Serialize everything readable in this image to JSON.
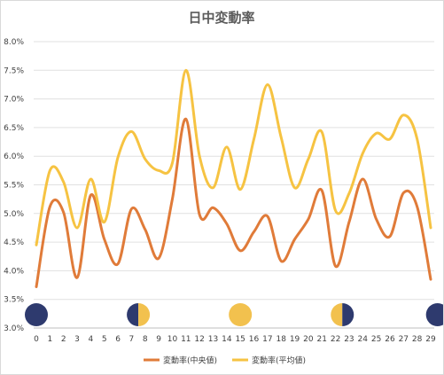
{
  "chart_data": {
    "type": "line",
    "title": "日中変動率",
    "xlabel": "",
    "ylabel": "",
    "x": [
      0,
      1,
      2,
      3,
      4,
      5,
      6,
      7,
      8,
      9,
      10,
      11,
      12,
      13,
      14,
      15,
      16,
      17,
      18,
      19,
      20,
      21,
      22,
      23,
      24,
      25,
      26,
      27,
      28,
      29
    ],
    "y_ticks": [
      "3.0%",
      "3.5%",
      "4.0%",
      "4.5%",
      "5.0%",
      "5.5%",
      "6.0%",
      "6.5%",
      "7.0%",
      "7.5%",
      "8.0%"
    ],
    "ylim": [
      3.0,
      8.0
    ],
    "grid": true,
    "legend_position": "bottom",
    "series": [
      {
        "name": "変動率(中央値)",
        "color": "#e07b39",
        "values": [
          3.72,
          5.12,
          5.02,
          3.88,
          5.32,
          4.55,
          4.12,
          5.08,
          4.72,
          4.22,
          5.25,
          6.65,
          4.98,
          5.1,
          4.82,
          4.35,
          4.68,
          4.95,
          4.17,
          4.55,
          4.9,
          5.4,
          4.08,
          4.85,
          5.6,
          4.9,
          4.6,
          5.36,
          5.12,
          3.85
        ]
      },
      {
        "name": "変動率(平均値)",
        "color": "#f6c342",
        "values": [
          4.45,
          5.75,
          5.55,
          4.75,
          5.6,
          4.85,
          5.98,
          6.43,
          5.95,
          5.75,
          5.88,
          7.5,
          6.0,
          5.45,
          6.16,
          5.42,
          6.3,
          7.25,
          6.33,
          5.45,
          5.95,
          6.42,
          5.05,
          5.35,
          6.05,
          6.4,
          6.3,
          6.72,
          6.3,
          4.75
        ]
      }
    ],
    "moon_phases": [
      {
        "x": 0,
        "phase": "new-moon"
      },
      {
        "x": 7.5,
        "phase": "first-quarter-moon"
      },
      {
        "x": 15,
        "phase": "full-moon"
      },
      {
        "x": 22.5,
        "phase": "last-quarter-moon"
      },
      {
        "x": 29.5,
        "phase": "new-moon"
      }
    ],
    "colors": {
      "moon_dark": "#2e3a6e",
      "moon_light": "#f2c14e",
      "grid": "#e0e0e0",
      "axis": "#bfbfbf"
    }
  }
}
